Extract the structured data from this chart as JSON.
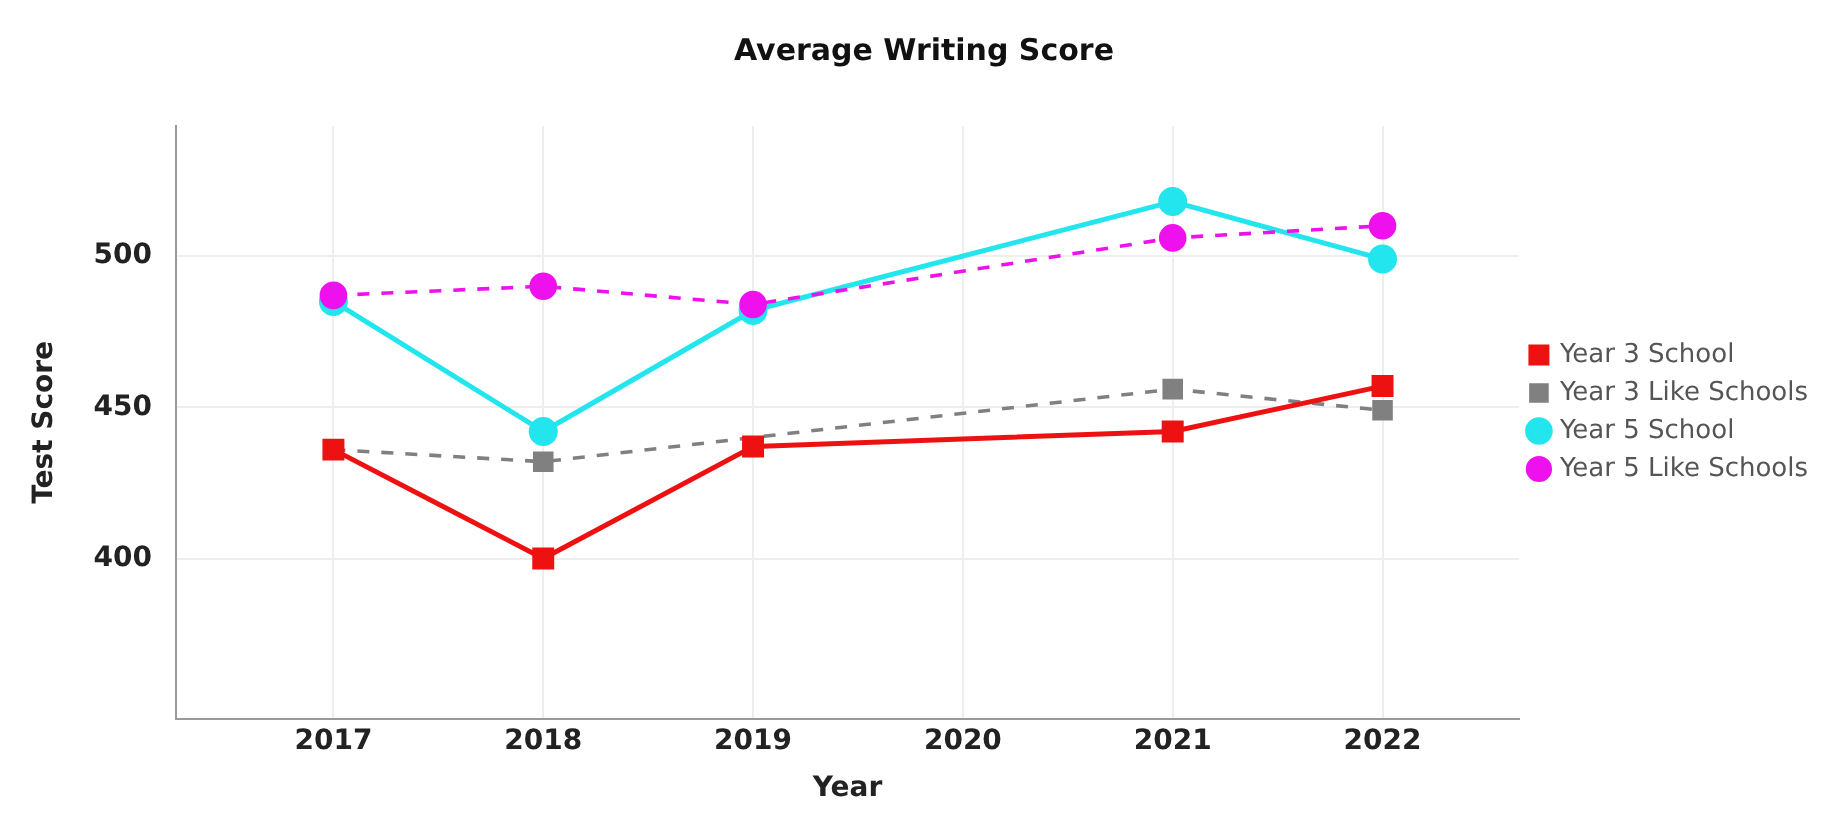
{
  "chart_data": {
    "type": "line",
    "title": "Average Writing Score",
    "xlabel": "Year",
    "ylabel": "Test Score",
    "x": [
      2017,
      2018,
      2019,
      2020,
      2021,
      2022
    ],
    "series": [
      {
        "name": "Year 3 School",
        "color": "#ee1111",
        "marker": "square",
        "line_style": "solid",
        "values": [
          436,
          400,
          437,
          null,
          442,
          457
        ]
      },
      {
        "name": "Year 3 Like Schools",
        "color": "#808080",
        "marker": "square",
        "line_style": "dashed",
        "values": [
          436,
          432,
          null,
          null,
          456,
          449
        ]
      },
      {
        "name": "Year 5 School",
        "color": "#22e5ee",
        "marker": "circle",
        "line_style": "solid",
        "values": [
          485,
          442,
          482,
          null,
          518,
          499
        ]
      },
      {
        "name": "Year 5 Like Schools",
        "color": "#ee11ee",
        "marker": "circle",
        "line_style": "dashed",
        "values": [
          487,
          490,
          484,
          null,
          506,
          510
        ]
      }
    ],
    "xlim": [
      2016.25,
      2022.65
    ],
    "xticks": [
      2017,
      2018,
      2019,
      2020,
      2021,
      2022
    ],
    "ylim": [
      347,
      543
    ],
    "yticks": [
      400,
      450,
      500
    ],
    "grid": true,
    "legend": "right"
  }
}
